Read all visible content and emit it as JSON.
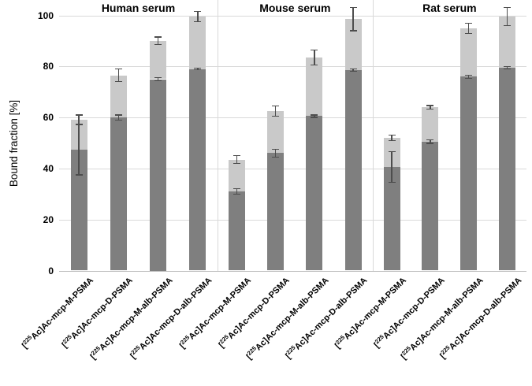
{
  "chart_data": {
    "type": "bar",
    "stacked": true,
    "title": "",
    "ylabel": "Bound fraction [%]",
    "xlabel": "",
    "ylim": [
      0,
      100
    ],
    "yticks": [
      0,
      20,
      40,
      60,
      80,
      100
    ],
    "grid": true,
    "legend": "none",
    "segment_names": [
      "lower dark-gray segment",
      "upper light-gray segment"
    ],
    "colors": {
      "dark_bar": "#7f7f7f",
      "light_bar": "#c9c9c9",
      "error_bar": "#4d4d4d",
      "gridline": "#d9d9d9",
      "axis_line": "#bfbfbf",
      "separator": "#d9d9d9",
      "text": "#000000",
      "background": "#ffffff"
    },
    "categories": [
      {
        "text": "[225Ac]Ac-mcp-M-PSMA",
        "prefix": "[",
        "sup": "225",
        "rest": "Ac]Ac-mcp-M-PSMA"
      },
      {
        "text": "[225Ac]Ac-mcp-D-PSMA",
        "prefix": "[",
        "sup": "225",
        "rest": "Ac]Ac-mcp-D-PSMA"
      },
      {
        "text": "[225Ac]Ac-mcp-M-alb-PSMA",
        "prefix": "[",
        "sup": "225",
        "rest": "Ac]Ac-mcp-M-alb-PSMA"
      },
      {
        "text": "[225Ac]Ac-mcp-D-alb-PSMA",
        "prefix": "[",
        "sup": "225",
        "rest": "Ac]Ac-mcp-D-alb-PSMA"
      }
    ],
    "panels": [
      {
        "title": "Human serum",
        "bars": [
          {
            "category": "[225Ac]Ac-mcp-M-PSMA",
            "lower": 47.5,
            "lower_err": 10,
            "total": 59,
            "total_err": 2
          },
          {
            "category": "[225Ac]Ac-mcp-D-PSMA",
            "lower": 60,
            "lower_err": 1,
            "total": 76.5,
            "total_err": 2.5
          },
          {
            "category": "[225Ac]Ac-mcp-M-alb-PSMA",
            "lower": 75,
            "lower_err": 0.7,
            "total": 90,
            "total_err": 1.5
          },
          {
            "category": "[225Ac]Ac-mcp-D-alb-PSMA",
            "lower": 79,
            "lower_err": 0.4,
            "total": 99.5,
            "total_err": 2
          }
        ]
      },
      {
        "title": "Mouse serum",
        "bars": [
          {
            "category": "[225Ac]Ac-mcp-M-PSMA",
            "lower": 31,
            "lower_err": 1,
            "total": 43.5,
            "total_err": 1.5
          },
          {
            "category": "[225Ac]Ac-mcp-D-PSMA",
            "lower": 46,
            "lower_err": 1.5,
            "total": 62.5,
            "total_err": 2
          },
          {
            "category": "[225Ac]Ac-mcp-M-alb-PSMA",
            "lower": 60.5,
            "lower_err": 0.5,
            "total": 83.5,
            "total_err": 3
          },
          {
            "category": "[225Ac]Ac-mcp-D-alb-PSMA",
            "lower": 78.5,
            "lower_err": 0.5,
            "total": 98.5,
            "total_err": 4.5
          }
        ]
      },
      {
        "title": "Rat serum",
        "bars": [
          {
            "category": "[225Ac]Ac-mcp-M-PSMA",
            "lower": 40.5,
            "lower_err": 6,
            "total": 52,
            "total_err": 1
          },
          {
            "category": "[225Ac]Ac-mcp-D-PSMA",
            "lower": 50.5,
            "lower_err": 0.7,
            "total": 64,
            "total_err": 0.7
          },
          {
            "category": "[225Ac]Ac-mcp-M-alb-PSMA",
            "lower": 76,
            "lower_err": 0.6,
            "total": 95,
            "total_err": 2
          },
          {
            "category": "[225Ac]Ac-mcp-D-alb-PSMA",
            "lower": 79.5,
            "lower_err": 0.4,
            "total": 99.5,
            "total_err": 3.5
          }
        ]
      }
    ]
  }
}
